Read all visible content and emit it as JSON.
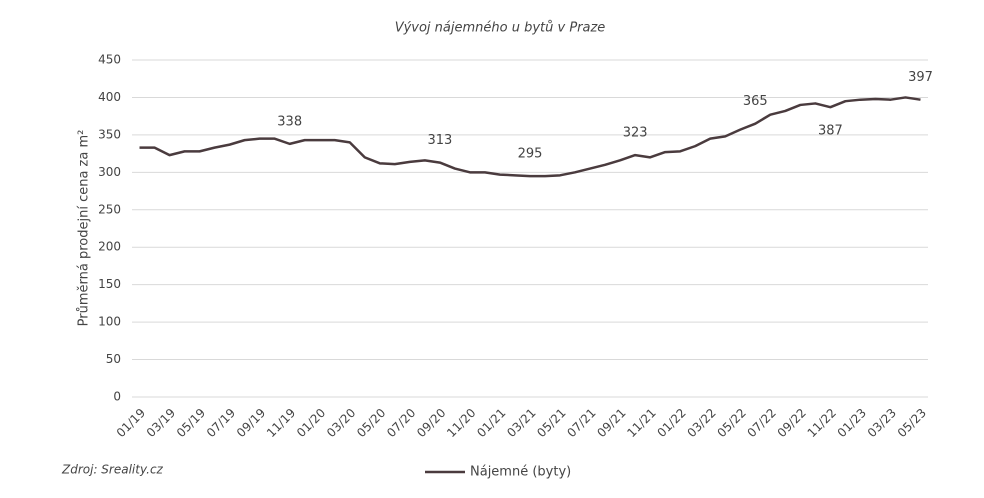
{
  "chart_data": {
    "type": "line",
    "title": "Vývoj nájemného u bytů v Praze",
    "y_label": "Průměrná prodejní cena za m²",
    "source": "Zdroj: Sreality.cz",
    "categories": [
      "01/19",
      null,
      "03/19",
      null,
      "05/19",
      null,
      "07/19",
      null,
      "09/19",
      null,
      "11/19",
      null,
      "01/20",
      null,
      "03/20",
      null,
      "05/20",
      null,
      "07/20",
      null,
      "09/20",
      null,
      "11/20",
      null,
      "01/21",
      null,
      "03/21",
      null,
      "05/21",
      null,
      "07/21",
      null,
      "09/21",
      null,
      "11/21",
      null,
      "01/22",
      null,
      "03/22",
      null,
      "05/22",
      null,
      "07/22",
      null,
      "09/22",
      null,
      "11/22",
      null,
      "01/23",
      null,
      "03/23",
      null,
      "05/23"
    ],
    "series": [
      {
        "name": "Nájemné (byty)",
        "color": "#4a3b3e",
        "values": [
          333,
          333,
          323,
          328,
          328,
          333,
          337,
          343,
          345,
          345,
          338,
          343,
          343,
          343,
          340,
          320,
          312,
          311,
          314,
          316,
          313,
          305,
          300,
          300,
          297,
          296,
          295,
          295,
          296,
          300,
          305,
          310,
          316,
          323,
          320,
          327,
          328,
          335,
          345,
          348,
          357,
          365,
          377,
          382,
          390,
          392,
          387,
          395,
          397,
          398,
          397,
          400,
          397
        ],
        "value_labels": [
          null,
          null,
          null,
          null,
          null,
          null,
          null,
          null,
          null,
          null,
          "338",
          null,
          null,
          null,
          null,
          null,
          null,
          null,
          null,
          null,
          "313",
          null,
          null,
          null,
          null,
          null,
          "295",
          null,
          null,
          null,
          null,
          null,
          null,
          "323",
          null,
          null,
          null,
          null,
          null,
          null,
          null,
          "365",
          null,
          null,
          null,
          null,
          "387",
          null,
          null,
          null,
          null,
          null,
          "397"
        ]
      }
    ],
    "ylim": [
      0,
      450
    ],
    "yticks": [
      0,
      50,
      100,
      150,
      200,
      250,
      300,
      350,
      400,
      450
    ],
    "grid": true,
    "legend": "bottom"
  }
}
